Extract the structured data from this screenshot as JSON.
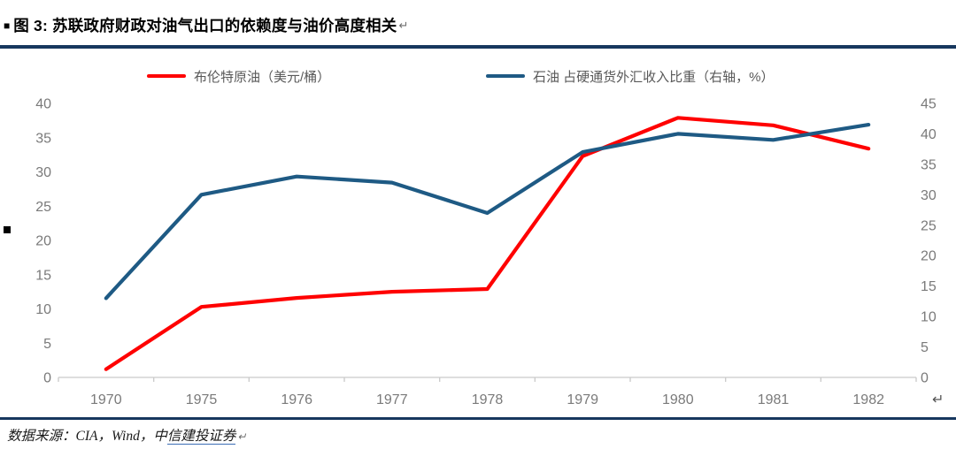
{
  "page": {
    "title_bullet": "■",
    "title": "图 3: 苏联政府财政对油气出口的依赖度与油价高度相关",
    "return_mark": "↵",
    "accent_color": "#17375E"
  },
  "legend": {
    "items": [
      {
        "label": "布伦特原油（美元/桶）",
        "color": "#FF0000"
      },
      {
        "label": "石油 占硬通货外汇收入比重（右轴，%）",
        "color": "#1E5A84"
      }
    ]
  },
  "chart_data": {
    "type": "line",
    "title": "苏联政府财政对油气出口的依赖度与油价高度相关",
    "categories": [
      "1970",
      "1975",
      "1976",
      "1977",
      "1978",
      "1979",
      "1980",
      "1981",
      "1982"
    ],
    "series": [
      {
        "name": "布伦特原油（美元/桶）",
        "axis": "left",
        "color": "#FF0000",
        "values": [
          1.2,
          10.3,
          11.6,
          12.5,
          12.9,
          32.3,
          37.9,
          36.8,
          33.4
        ]
      },
      {
        "name": "石油 占硬通货外汇收入比重（右轴，%）",
        "axis": "right",
        "color": "#1E5A84",
        "values": [
          13,
          30,
          33,
          32,
          27,
          37,
          40,
          39,
          41.5
        ]
      }
    ],
    "left_axis": {
      "min": 0,
      "max": 40,
      "step": 5
    },
    "right_axis": {
      "min": 0,
      "max": 45,
      "step": 5
    },
    "grid": false,
    "legend_position": "top",
    "axis_line_color": "#c9c9c9",
    "tick_label_color": "#7a7a7a"
  },
  "footer": {
    "text_prefix": "数据来源：CIA，Wind，中",
    "link_text": "信建投证券",
    "return_mark": "↵"
  }
}
